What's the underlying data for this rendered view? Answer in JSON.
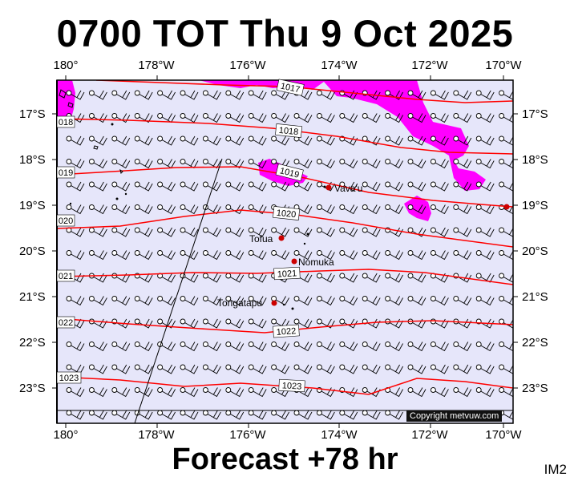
{
  "title": "0700 TOT Thu 9 Oct 2025",
  "footer": "Forecast +78 hr",
  "image_code": "IM2",
  "copyright": "Copyright metvuw.com",
  "map": {
    "lon_labels": [
      "180°",
      "178°W",
      "176°W",
      "174°W",
      "172°W",
      "170°W"
    ],
    "lat_labels": [
      "17°S",
      "18°S",
      "19°S",
      "20°S",
      "21°S",
      "22°S",
      "23°S"
    ],
    "isobar_labels": [
      "1017",
      "1018",
      "1019",
      "1020",
      "1021",
      "1022",
      "1023"
    ],
    "left_isobar_labels": [
      "018",
      "019",
      "020",
      "021",
      "022",
      "1023"
    ],
    "places": [
      "Vava'u",
      "Tofua",
      "Nomuka",
      "Tongatapu"
    ],
    "colors": {
      "ocean": "#e6e6fa",
      "isobar": "#ff0000",
      "rain": "#ff00ff",
      "marker": "#cc0000"
    },
    "wind_barbs": "south-easterly"
  }
}
